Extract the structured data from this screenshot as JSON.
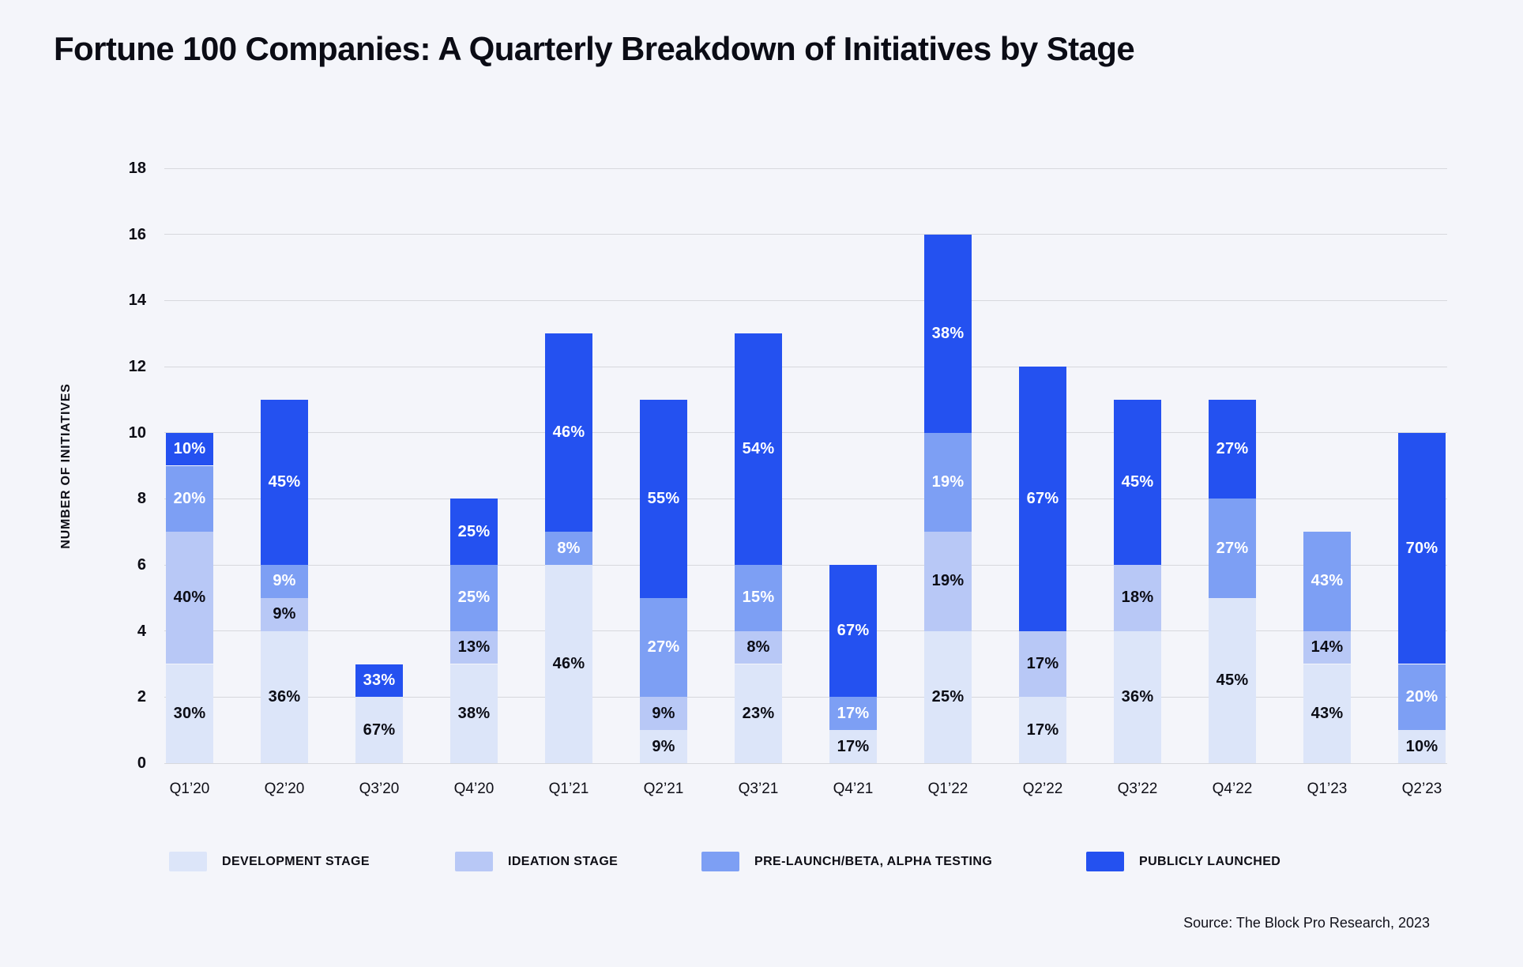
{
  "chart_data": {
    "type": "bar",
    "variant": "stacked",
    "title": "Fortune 100 Companies: A Quarterly Breakdown of Initiatives by Stage",
    "ylabel": "NUMBER OF INITIATIVES",
    "xlabel": "",
    "source": "Source: The Block Pro Research, 2023",
    "ylim": [
      0,
      18
    ],
    "yticks": [
      0,
      2,
      4,
      6,
      8,
      10,
      12,
      14,
      16,
      18
    ],
    "grid": "horizontal",
    "legend_position": "bottom",
    "background_color": "#f4f5fa",
    "gridline_color": "#d7d8dd",
    "categories": [
      "Q1’20",
      "Q2’20",
      "Q3’20",
      "Q4’20",
      "Q1’21",
      "Q2’21",
      "Q3’21",
      "Q4’21",
      "Q1’22",
      "Q2’22",
      "Q3’22",
      "Q4’22",
      "Q1’23",
      "Q2’23"
    ],
    "totals": [
      10,
      11,
      3,
      8,
      13,
      11,
      13,
      6,
      16,
      12,
      11,
      11,
      7,
      10
    ],
    "series": [
      {
        "name": "DEVELOPMENT STAGE",
        "color": "#dce5f9",
        "label_text_color": "#0b0c15",
        "values": [
          3,
          4,
          2,
          3,
          6,
          1,
          3,
          1,
          4,
          2,
          4,
          5,
          3,
          1
        ],
        "percent_labels": [
          "30%",
          "36%",
          "67%",
          "38%",
          "46%",
          "9%",
          "23%",
          "17%",
          "25%",
          "17%",
          "36%",
          "45%",
          "43%",
          "10%"
        ]
      },
      {
        "name": "IDEATION STAGE",
        "color": "#b8c8f6",
        "label_text_color": "#0b0c15",
        "values": [
          4,
          1,
          0,
          1,
          0,
          1,
          1,
          0,
          3,
          2,
          2,
          0,
          1,
          0
        ],
        "percent_labels": [
          "40%",
          "9%",
          "",
          "13%",
          "",
          "9%",
          "8%",
          "",
          "19%",
          "17%",
          "18%",
          "",
          "14%",
          ""
        ]
      },
      {
        "name": "PRE-LAUNCH/BETA, ALPHA TESTING",
        "color": "#7d9ff4",
        "label_text_color": "#ffffff",
        "values": [
          2,
          1,
          0,
          2,
          1,
          3,
          2,
          1,
          3,
          0,
          0,
          3,
          3,
          2
        ],
        "percent_labels": [
          "20%",
          "9%",
          "",
          "25%",
          "8%",
          "27%",
          "15%",
          "17%",
          "19%",
          "",
          "",
          "27%",
          "43%",
          "20%"
        ]
      },
      {
        "name": "PUBLICLY LAUNCHED",
        "color": "#2451f0",
        "label_text_color": "#ffffff",
        "values": [
          1,
          5,
          1,
          2,
          6,
          6,
          7,
          4,
          6,
          8,
          5,
          3,
          0,
          7
        ],
        "percent_labels": [
          "10%",
          "45%",
          "33%",
          "25%",
          "46%",
          "55%",
          "54%",
          "67%",
          "38%",
          "67%",
          "45%",
          "27%",
          "",
          "70%"
        ]
      }
    ]
  }
}
